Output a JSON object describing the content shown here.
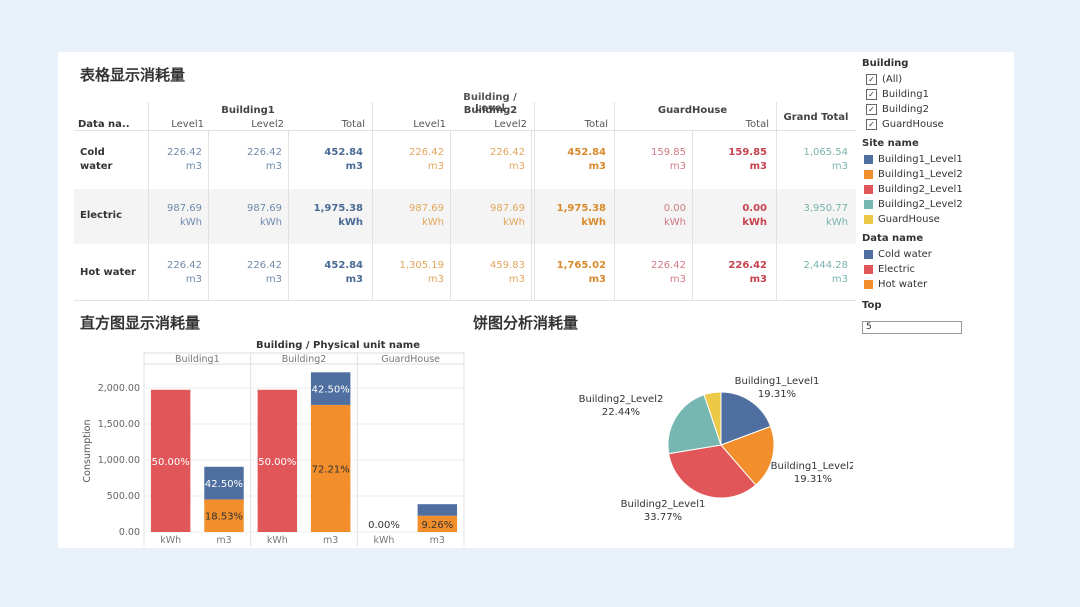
{
  "table": {
    "title": "表格显示消耗量",
    "top_header": "Building / Level",
    "row_header": "Data na..",
    "groups": [
      "Building1",
      "Building2",
      "GuardHouse"
    ],
    "col_labels": [
      "Level1",
      "Level2",
      "Total",
      "Level1",
      "Level2",
      "Total",
      "",
      "Total",
      "Grand Total"
    ],
    "rows": [
      {
        "label_lines": [
          "Cold",
          "water"
        ],
        "cells": [
          {
            "v": "226.42",
            "u": "m3"
          },
          {
            "v": "226.42",
            "u": "m3"
          },
          {
            "v": "452.84",
            "u": "m3"
          },
          {
            "v": "226.42",
            "u": "m3"
          },
          {
            "v": "226.42",
            "u": "m3"
          },
          {
            "v": "452.84",
            "u": "m3"
          },
          {
            "v": "159.85",
            "u": "m3"
          },
          {
            "v": "159.85",
            "u": "m3"
          },
          {
            "v": "1,065.54",
            "u": "m3"
          }
        ]
      },
      {
        "label_lines": [
          "Electric"
        ],
        "cells": [
          {
            "v": "987.69",
            "u": "kWh"
          },
          {
            "v": "987.69",
            "u": "kWh"
          },
          {
            "v": "1,975.38",
            "u": "kWh"
          },
          {
            "v": "987.69",
            "u": "kWh"
          },
          {
            "v": "987.69",
            "u": "kWh"
          },
          {
            "v": "1,975.38",
            "u": "kWh"
          },
          {
            "v": "0.00",
            "u": "kWh"
          },
          {
            "v": "0.00",
            "u": "kWh"
          },
          {
            "v": "3,950.77",
            "u": "kWh"
          }
        ]
      },
      {
        "label_lines": [
          "Hot water"
        ],
        "cells": [
          {
            "v": "226.42",
            "u": "m3"
          },
          {
            "v": "226.42",
            "u": "m3"
          },
          {
            "v": "452.84",
            "u": "m3"
          },
          {
            "v": "1,305.19",
            "u": "m3"
          },
          {
            "v": "459.83",
            "u": "m3"
          },
          {
            "v": "1,765.02",
            "u": "m3"
          },
          {
            "v": "226.42",
            "u": "m3"
          },
          {
            "v": "226.42",
            "u": "m3"
          },
          {
            "v": "2,444.28",
            "u": "m3"
          }
        ]
      }
    ],
    "col_colors": [
      "#6e8bab",
      "#6e8bab",
      "#4a6b95",
      "#e2a65b",
      "#e2a65b",
      "#d98a2c",
      "#cf7a84",
      "#c8424f",
      "#79b3ad"
    ]
  },
  "bar_section": {
    "title": "直方图显示消耗量",
    "top_header": "Building / Physical unit name"
  },
  "pie_section": {
    "title": "饼图分析消耗量"
  },
  "sidebar": {
    "building_title": "Building",
    "building_items": [
      "(All)",
      "Building1",
      "Building2",
      "GuardHouse"
    ],
    "check_mark": "✓",
    "site_title": "Site name",
    "site_items": [
      {
        "label": "Building1_Level1",
        "color": "#4e6fa0"
      },
      {
        "label": "Building1_Level2",
        "color": "#f28e2b"
      },
      {
        "label": "Building2_Level1",
        "color": "#e15759"
      },
      {
        "label": "Building2_Level2",
        "color": "#76b7b2"
      },
      {
        "label": "GuardHouse",
        "color": "#edc948"
      }
    ],
    "data_title": "Data name",
    "data_items": [
      {
        "label": "Cold water",
        "color": "#4e6fa0"
      },
      {
        "label": "Electric",
        "color": "#e15759"
      },
      {
        "label": "Hot water",
        "color": "#f28e2b"
      }
    ],
    "top_title": "Top",
    "top_value": "5"
  },
  "chart_data": [
    {
      "type": "bar",
      "stacked": true,
      "groups": [
        "Building1",
        "Building2",
        "GuardHouse"
      ],
      "categories": [
        "kWh",
        "m3",
        "kWh",
        "m3",
        "kWh",
        "m3"
      ],
      "ylabel": "Consumption",
      "yticks": [
        "0.00",
        "500.00",
        "1,000.00",
        "1,500.00",
        "2,000.00"
      ],
      "ylim": [
        0,
        2250
      ],
      "series": [
        {
          "name": "Electric",
          "color": "#e15759",
          "values": [
            1975.38,
            0,
            1975.38,
            0,
            0,
            0
          ]
        },
        {
          "name": "Hot water",
          "color": "#f28e2b",
          "values": [
            0,
            452.84,
            0,
            1765.02,
            0,
            226.42
          ]
        },
        {
          "name": "Cold water",
          "color": "#4e6fa0",
          "values": [
            0,
            452.84,
            0,
            452.84,
            0,
            159.85
          ]
        }
      ],
      "segment_labels": [
        {
          "bar": 0,
          "series": 0,
          "text": "50.00%"
        },
        {
          "bar": 1,
          "series": 1,
          "text": "18.53%"
        },
        {
          "bar": 1,
          "series": 2,
          "text": "42.50%"
        },
        {
          "bar": 2,
          "series": 0,
          "text": "50.00%"
        },
        {
          "bar": 3,
          "series": 1,
          "text": "72.21%"
        },
        {
          "bar": 3,
          "series": 2,
          "text": "42.50%"
        },
        {
          "bar": 4,
          "series": 0,
          "text": "0.00%"
        },
        {
          "bar": 5,
          "series": 1,
          "text": "9.26%"
        }
      ]
    },
    {
      "type": "pie",
      "slices": [
        {
          "label": "Building1_Level1",
          "pct_label": "19.31%",
          "value": 19.31,
          "color": "#4e6fa0"
        },
        {
          "label": "Building1_Level2",
          "pct_label": "19.31%",
          "value": 19.31,
          "color": "#f28e2b"
        },
        {
          "label": "Building2_Level1",
          "pct_label": "33.77%",
          "value": 33.77,
          "color": "#e15759"
        },
        {
          "label": "Building2_Level2",
          "pct_label": "22.44%",
          "value": 22.44,
          "color": "#76b7b2"
        },
        {
          "label": "GuardHouse",
          "pct_label": "",
          "value": 5.17,
          "color": "#edc948"
        }
      ]
    }
  ]
}
